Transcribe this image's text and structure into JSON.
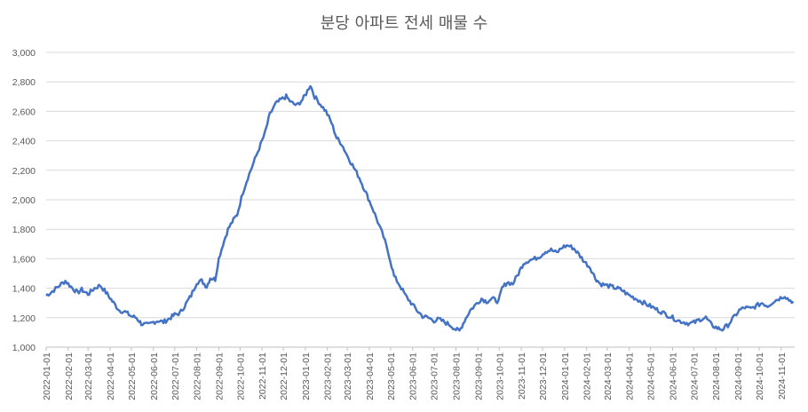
{
  "chart_data": {
    "type": "line",
    "title": "분당 아파트 전세 매물 수",
    "ylim": [
      1000,
      3000
    ],
    "y_ticks": [
      "1,000",
      "1,200",
      "1,400",
      "1,600",
      "1,800",
      "2,000",
      "2,200",
      "2,400",
      "2,600",
      "2,800",
      "3,000"
    ],
    "x_ticks": [
      "2022-01-01",
      "2022-02-01",
      "2022-03-01",
      "2022-04-01",
      "2022-05-01",
      "2022-06-01",
      "2022-07-01",
      "2022-08-01",
      "2022-09-01",
      "2022-10-01",
      "2022-11-01",
      "2022-12-01",
      "2023-01-01",
      "2023-02-01",
      "2023-03-01",
      "2023-04-01",
      "2023-05-01",
      "2023-06-01",
      "2023-07-01",
      "2023-08-01",
      "2023-09-01",
      "2023-10-01",
      "2023-11-01",
      "2023-12-01",
      "2024-01-01",
      "2024-02-01",
      "2024-03-01",
      "2024-04-01",
      "2024-05-01",
      "2024-06-01",
      "2024-07-01",
      "2024-08-01",
      "2024-09-01",
      "2024-10-01",
      "2024-11-01"
    ],
    "grid": true,
    "line_color": "#4472C4",
    "series": [
      {
        "name": "",
        "points": [
          [
            "2022-01-01",
            1350
          ],
          [
            "2022-01-10",
            1380
          ],
          [
            "2022-01-20",
            1420
          ],
          [
            "2022-01-28",
            1450
          ],
          [
            "2022-02-05",
            1410
          ],
          [
            "2022-02-14",
            1370
          ],
          [
            "2022-02-20",
            1390
          ],
          [
            "2022-03-01",
            1360
          ],
          [
            "2022-03-10",
            1400
          ],
          [
            "2022-03-18",
            1420
          ],
          [
            "2022-03-28",
            1360
          ],
          [
            "2022-04-06",
            1300
          ],
          [
            "2022-04-14",
            1250
          ],
          [
            "2022-04-22",
            1240
          ],
          [
            "2022-05-01",
            1210
          ],
          [
            "2022-05-08",
            1200
          ],
          [
            "2022-05-15",
            1160
          ],
          [
            "2022-05-25",
            1150
          ],
          [
            "2022-06-01",
            1170
          ],
          [
            "2022-06-08",
            1180
          ],
          [
            "2022-06-15",
            1170
          ],
          [
            "2022-06-22",
            1190
          ],
          [
            "2022-07-01",
            1220
          ],
          [
            "2022-07-08",
            1230
          ],
          [
            "2022-07-15",
            1280
          ],
          [
            "2022-07-24",
            1350
          ],
          [
            "2022-08-01",
            1440
          ],
          [
            "2022-08-08",
            1450
          ],
          [
            "2022-08-15",
            1410
          ],
          [
            "2022-08-20",
            1470
          ],
          [
            "2022-08-27",
            1460
          ],
          [
            "2022-09-01",
            1600
          ],
          [
            "2022-09-07",
            1700
          ],
          [
            "2022-09-14",
            1800
          ],
          [
            "2022-09-20",
            1850
          ],
          [
            "2022-09-27",
            1900
          ],
          [
            "2022-10-05",
            2050
          ],
          [
            "2022-10-12",
            2150
          ],
          [
            "2022-10-20",
            2250
          ],
          [
            "2022-10-28",
            2350
          ],
          [
            "2022-11-05",
            2450
          ],
          [
            "2022-11-12",
            2580
          ],
          [
            "2022-11-20",
            2650
          ],
          [
            "2022-11-28",
            2680
          ],
          [
            "2022-12-05",
            2700
          ],
          [
            "2022-12-12",
            2660
          ],
          [
            "2022-12-20",
            2640
          ],
          [
            "2022-12-28",
            2680
          ],
          [
            "2023-01-02",
            2720
          ],
          [
            "2023-01-08",
            2780
          ],
          [
            "2023-01-14",
            2700
          ],
          [
            "2023-01-22",
            2650
          ],
          [
            "2023-01-30",
            2600
          ],
          [
            "2023-02-07",
            2520
          ],
          [
            "2023-02-14",
            2420
          ],
          [
            "2023-02-21",
            2380
          ],
          [
            "2023-03-01",
            2300
          ],
          [
            "2023-03-10",
            2220
          ],
          [
            "2023-03-18",
            2150
          ],
          [
            "2023-03-27",
            2050
          ],
          [
            "2023-04-05",
            1950
          ],
          [
            "2023-04-13",
            1850
          ],
          [
            "2023-04-21",
            1750
          ],
          [
            "2023-04-29",
            1620
          ],
          [
            "2023-05-06",
            1480
          ],
          [
            "2023-05-14",
            1420
          ],
          [
            "2023-05-22",
            1350
          ],
          [
            "2023-05-30",
            1300
          ],
          [
            "2023-06-07",
            1250
          ],
          [
            "2023-06-15",
            1210
          ],
          [
            "2023-06-23",
            1200
          ],
          [
            "2023-07-01",
            1180
          ],
          [
            "2023-07-08",
            1190
          ],
          [
            "2023-07-16",
            1170
          ],
          [
            "2023-07-24",
            1150
          ],
          [
            "2023-08-01",
            1120
          ],
          [
            "2023-08-06",
            1110
          ],
          [
            "2023-08-13",
            1180
          ],
          [
            "2023-08-21",
            1250
          ],
          [
            "2023-08-29",
            1290
          ],
          [
            "2023-09-06",
            1330
          ],
          [
            "2023-09-13",
            1310
          ],
          [
            "2023-09-21",
            1330
          ],
          [
            "2023-09-30",
            1310
          ],
          [
            "2023-10-05",
            1400
          ],
          [
            "2023-10-12",
            1440
          ],
          [
            "2023-10-20",
            1430
          ],
          [
            "2023-10-28",
            1500
          ],
          [
            "2023-11-04",
            1570
          ],
          [
            "2023-11-12",
            1590
          ],
          [
            "2023-11-20",
            1600
          ],
          [
            "2023-11-28",
            1620
          ],
          [
            "2023-12-05",
            1650
          ],
          [
            "2023-12-13",
            1660
          ],
          [
            "2023-12-21",
            1640
          ],
          [
            "2023-12-29",
            1680
          ],
          [
            "2024-01-06",
            1690
          ],
          [
            "2024-01-14",
            1670
          ],
          [
            "2024-01-21",
            1630
          ],
          [
            "2024-01-29",
            1580
          ],
          [
            "2024-02-06",
            1540
          ],
          [
            "2024-02-13",
            1470
          ],
          [
            "2024-02-20",
            1430
          ],
          [
            "2024-02-28",
            1420
          ],
          [
            "2024-03-07",
            1410
          ],
          [
            "2024-03-14",
            1400
          ],
          [
            "2024-03-21",
            1390
          ],
          [
            "2024-03-29",
            1360
          ],
          [
            "2024-04-06",
            1340
          ],
          [
            "2024-04-14",
            1320
          ],
          [
            "2024-04-22",
            1300
          ],
          [
            "2024-04-30",
            1280
          ],
          [
            "2024-05-08",
            1260
          ],
          [
            "2024-05-16",
            1240
          ],
          [
            "2024-05-24",
            1220
          ],
          [
            "2024-06-01",
            1200
          ],
          [
            "2024-06-09",
            1180
          ],
          [
            "2024-06-17",
            1170
          ],
          [
            "2024-06-25",
            1160
          ],
          [
            "2024-07-03",
            1170
          ],
          [
            "2024-07-10",
            1190
          ],
          [
            "2024-07-18",
            1200
          ],
          [
            "2024-07-26",
            1150
          ],
          [
            "2024-08-03",
            1130
          ],
          [
            "2024-08-10",
            1120
          ],
          [
            "2024-08-18",
            1150
          ],
          [
            "2024-08-26",
            1200
          ],
          [
            "2024-09-03",
            1250
          ],
          [
            "2024-09-11",
            1270
          ],
          [
            "2024-09-19",
            1260
          ],
          [
            "2024-09-27",
            1280
          ],
          [
            "2024-10-05",
            1300
          ],
          [
            "2024-10-13",
            1280
          ],
          [
            "2024-10-21",
            1310
          ],
          [
            "2024-10-29",
            1330
          ],
          [
            "2024-11-06",
            1350
          ],
          [
            "2024-11-12",
            1320
          ],
          [
            "2024-11-18",
            1310
          ]
        ]
      }
    ]
  }
}
